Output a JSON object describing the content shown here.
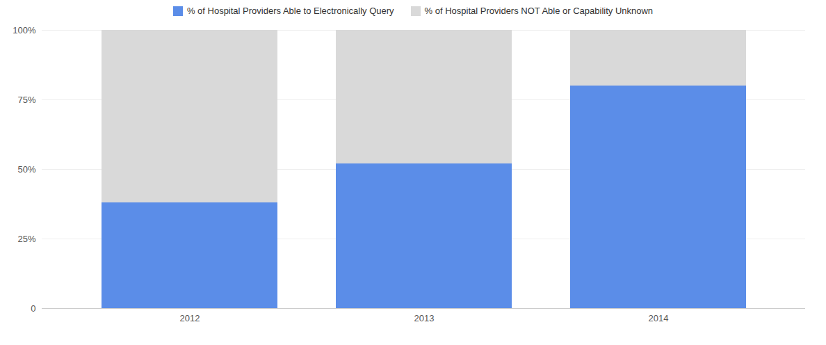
{
  "chart_data": {
    "type": "bar",
    "stacked": true,
    "categories": [
      "2012",
      "2013",
      "2014"
    ],
    "series": [
      {
        "name": "% of Hospital Providers Able to Electronically Query",
        "color": "#5b8de8",
        "values": [
          0.38,
          0.52,
          0.8
        ]
      },
      {
        "name": "% of Hospital Providers NOT Able or Capability Unknown",
        "color": "#d9d9d9",
        "values": [
          0.62,
          0.48,
          0.2
        ]
      }
    ],
    "ylim": [
      0,
      1.0
    ],
    "yticks": [
      0,
      {
        "value": 0.25,
        "label": "25%"
      },
      {
        "value": 0.5,
        "label": "50%"
      },
      {
        "value": 0.75,
        "label": "75%"
      },
      {
        "value": 1.0,
        "label": "100%"
      }
    ],
    "grid": true,
    "legend": "top"
  }
}
